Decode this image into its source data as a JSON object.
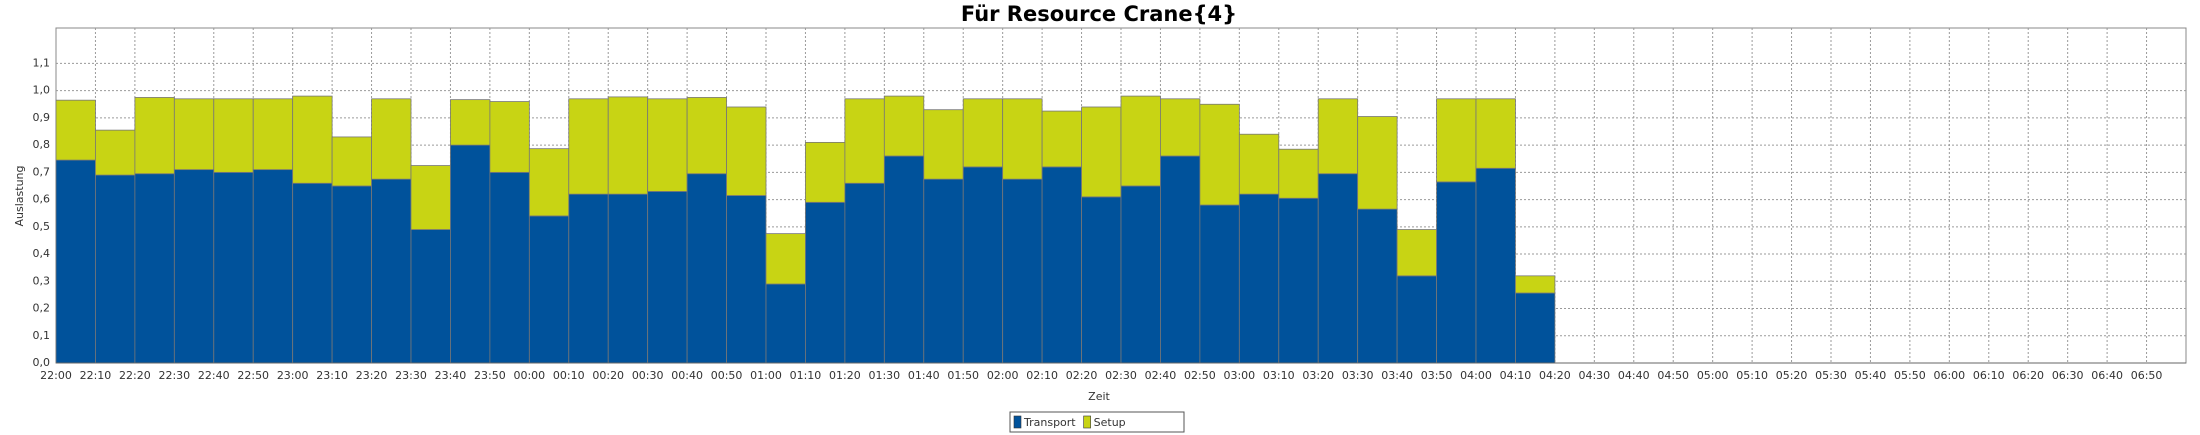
{
  "chart_data": {
    "type": "stacked_bar",
    "title": "Für Resource Crane{4}",
    "x_label": "Zeit",
    "y_label": "Auslastung",
    "categories": [
      "22:00",
      "22:10",
      "22:20",
      "22:30",
      "22:40",
      "22:50",
      "23:00",
      "23:10",
      "23:20",
      "23:30",
      "23:40",
      "23:50",
      "00:00",
      "00:10",
      "00:20",
      "00:30",
      "00:40",
      "00:50",
      "01:00",
      "01:10",
      "01:20",
      "01:30",
      "01:40",
      "01:50",
      "02:00",
      "02:10",
      "02:20",
      "02:30",
      "02:40",
      "02:50",
      "03:00",
      "03:10",
      "03:20",
      "03:30",
      "03:40",
      "03:50",
      "04:00",
      "04:10",
      "04:20",
      "04:30",
      "04:40",
      "04:50",
      "05:00",
      "05:10",
      "05:20",
      "05:30",
      "05:40",
      "05:50",
      "06:00",
      "06:10",
      "06:20",
      "06:30",
      "06:40",
      "06:50"
    ],
    "series": [
      {
        "name": "Transport",
        "color": "#00529b",
        "values": [
          0.745,
          0.69,
          0.695,
          0.71,
          0.7,
          0.71,
          0.66,
          0.65,
          0.675,
          0.49,
          0.8,
          0.7,
          0.54,
          0.62,
          0.62,
          0.63,
          0.695,
          0.615,
          0.29,
          0.59,
          0.66,
          0.76,
          0.675,
          0.72,
          0.675,
          0.72,
          0.61,
          0.65,
          0.76,
          0.58,
          0.62,
          0.605,
          0.695,
          0.565,
          0.32,
          0.665,
          0.715,
          0.257,
          null,
          null,
          null,
          null,
          null,
          null,
          null,
          null,
          null,
          null,
          null,
          null,
          null,
          null,
          null,
          null
        ]
      },
      {
        "name": "Setup",
        "color": "#c8d414",
        "values": [
          0.22,
          0.165,
          0.28,
          0.26,
          0.27,
          0.26,
          0.32,
          0.18,
          0.295,
          0.235,
          0.167,
          0.26,
          0.247,
          0.35,
          0.357,
          0.34,
          0.28,
          0.325,
          0.185,
          0.22,
          0.31,
          0.22,
          0.255,
          0.25,
          0.295,
          0.205,
          0.33,
          0.33,
          0.21,
          0.37,
          0.22,
          0.18,
          0.275,
          0.34,
          0.17,
          0.305,
          0.255,
          0.063,
          null,
          null,
          null,
          null,
          null,
          null,
          null,
          null,
          null,
          null,
          null,
          null,
          null,
          null,
          null,
          null
        ]
      }
    ],
    "ylim": [
      0,
      1.23
    ],
    "yticks": [
      {
        "value": 0,
        "label": "0,0"
      },
      {
        "value": 0.1,
        "label": "0,1"
      },
      {
        "value": 0.2,
        "label": "0,2"
      },
      {
        "value": 0.3,
        "label": "0,3"
      },
      {
        "value": 0.4,
        "label": "0,4"
      },
      {
        "value": 0.5,
        "label": "0,5"
      },
      {
        "value": 0.6,
        "label": "0,6"
      },
      {
        "value": 0.7,
        "label": "0,7"
      },
      {
        "value": 0.8,
        "label": "0,8"
      },
      {
        "value": 0.9,
        "label": "0,9"
      },
      {
        "value": 1.0,
        "label": "1,0"
      },
      {
        "value": 1.1,
        "label": "1,1"
      }
    ],
    "grid": true,
    "legend": "bottom"
  }
}
